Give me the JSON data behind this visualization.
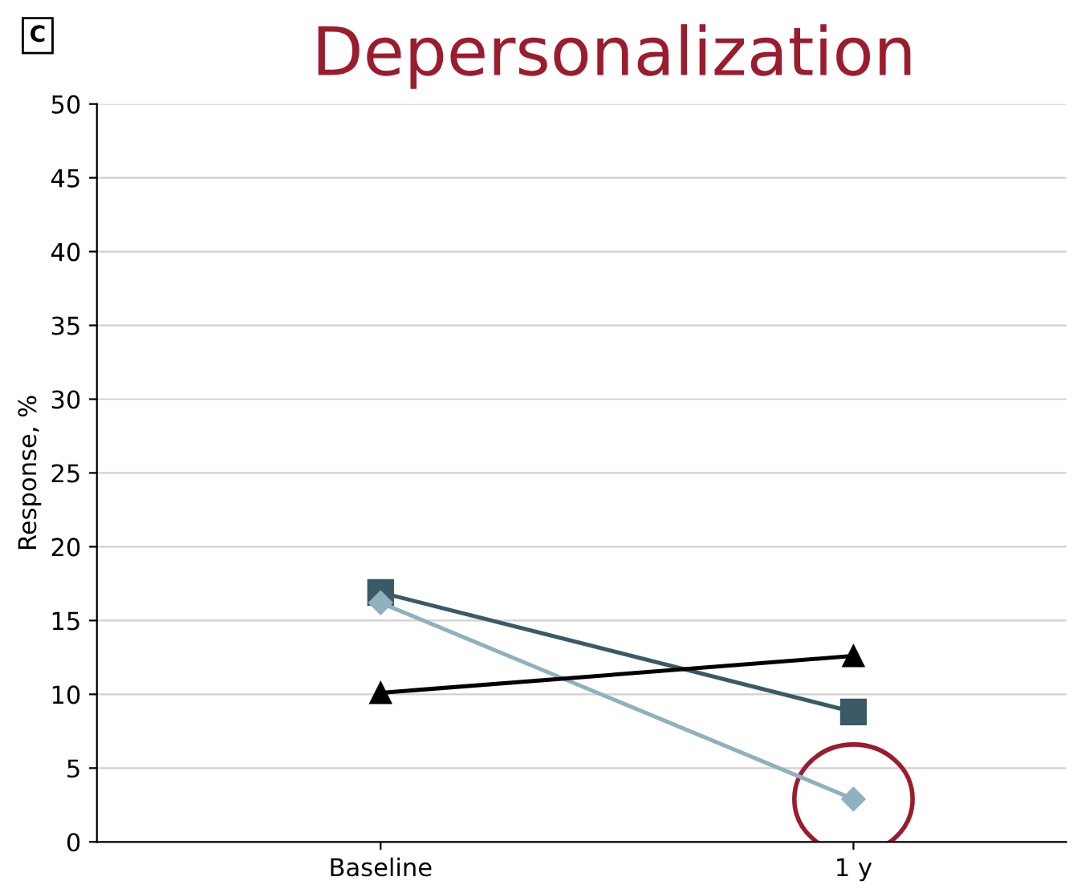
{
  "chart_data": {
    "type": "line",
    "title": "Depersonalization",
    "ylabel": "Response, %",
    "annotations": [
      "C"
    ],
    "categories": [
      "Baseline",
      "1 y"
    ],
    "series": [
      {
        "color": "#3a5a66",
        "values": [
          16.9,
          8.8
        ],
        "marker": "square"
      },
      {
        "color": "#8fb0bf",
        "values": [
          16.2,
          2.9
        ],
        "marker": "diamond"
      },
      {
        "color": "#000000",
        "values": [
          10.1,
          12.6
        ],
        "marker": "triangle"
      }
    ],
    "ylim": [
      0,
      50
    ],
    "yticks": [
      0,
      5,
      10,
      15,
      20,
      25,
      30,
      35,
      40,
      45,
      50
    ],
    "grid": "y",
    "legend": false,
    "line_style": "solid"
  }
}
